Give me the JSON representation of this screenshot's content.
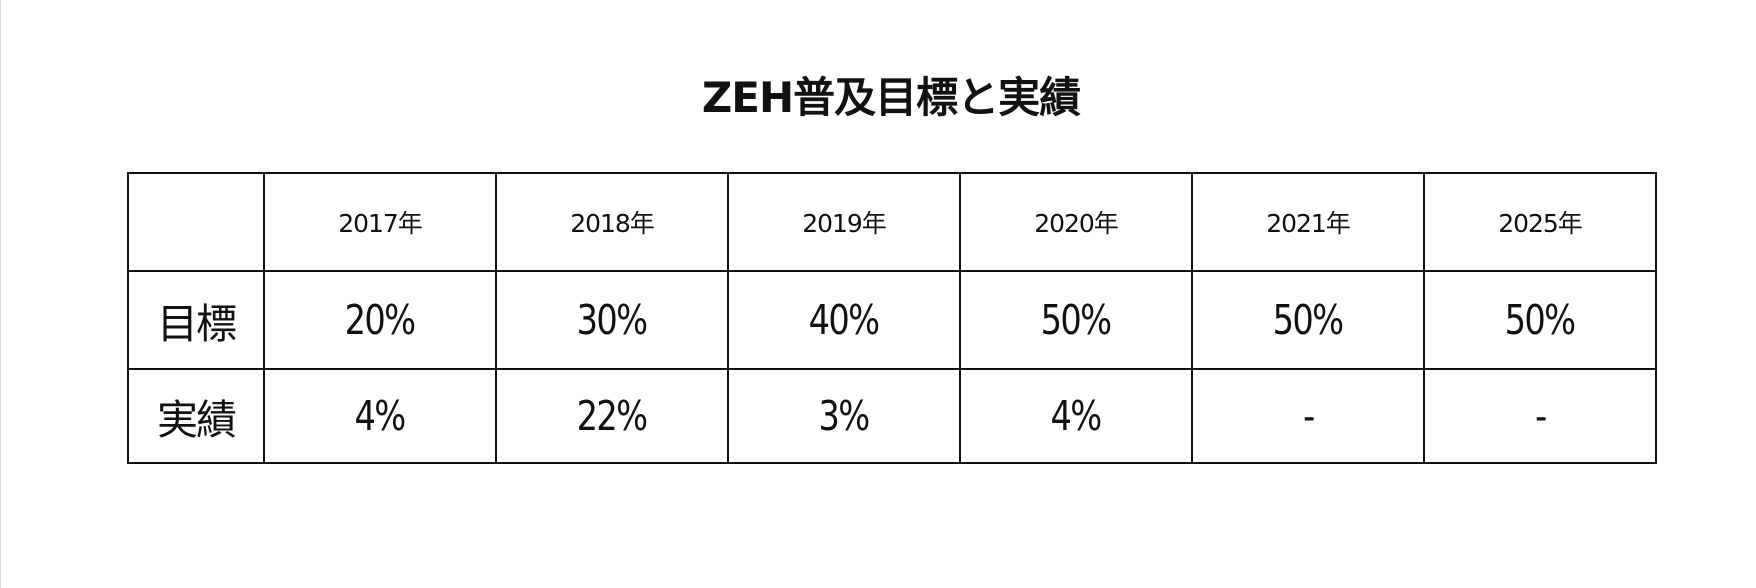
{
  "chart_data": {
    "type": "table",
    "title": "ZEH普及目標と実績",
    "columns": [
      "",
      "2017年",
      "2018年",
      "2019年",
      "2020年",
      "2021年",
      "2025年"
    ],
    "rows": [
      {
        "label": "目標",
        "values": [
          "20%",
          "30%",
          "40%",
          "50%",
          "50%",
          "50%"
        ]
      },
      {
        "label": "実績",
        "values": [
          "4%",
          "22%",
          "3%",
          "4%",
          "-",
          "-"
        ]
      }
    ]
  }
}
